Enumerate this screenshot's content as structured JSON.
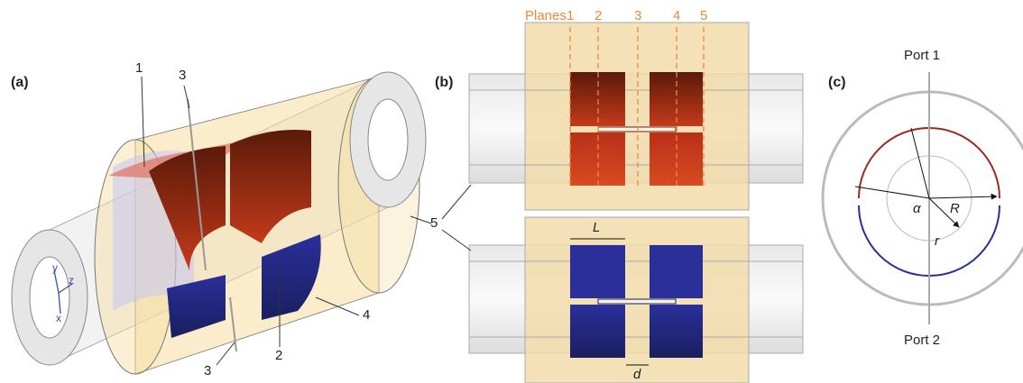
{
  "panels": [
    {
      "label": "(a)",
      "callouts": [
        "1",
        "3",
        "5",
        "4",
        "2",
        "3"
      ],
      "axes": [
        "y",
        "z",
        "x"
      ]
    },
    {
      "label": "(b)",
      "planes_title": "Planes",
      "planes": [
        "1",
        "2",
        "3",
        "4",
        "5"
      ],
      "dimensions": [
        "L",
        "d"
      ]
    },
    {
      "label": "(c)",
      "ports": [
        "Port 1",
        "Port 2"
      ],
      "symbols": [
        "α",
        "R",
        "r"
      ]
    }
  ]
}
